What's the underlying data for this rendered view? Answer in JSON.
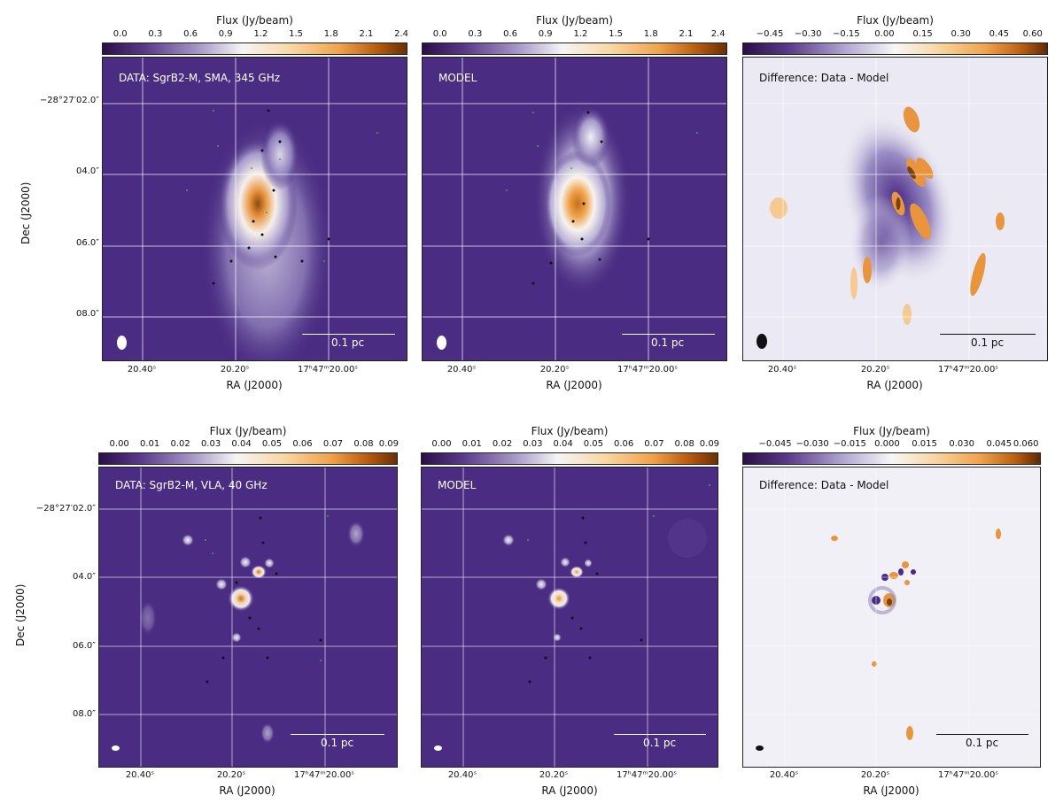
{
  "figure": {
    "colorbar_title": "Flux (Jy/beam)",
    "xaxis_label": "RA (J2000)",
    "yaxis_label": "Dec (J2000)",
    "scale_bar_label": "0.1 pc"
  },
  "rows": [
    {
      "name": "sma",
      "ytick_labels": [
        "−28°27′02.0″",
        "04.0″",
        "06.0″",
        "08.0″"
      ],
      "xtick_labels": [
        "20.40ˢ",
        "20.20ˢ",
        "17ʰ47ᵐ20.00ˢ"
      ],
      "panels": [
        {
          "name": "data",
          "label": "DATA: SgrB2-M, SMA, 345 GHz",
          "colorbar_ticks": [
            "0.0",
            "0.3",
            "0.6",
            "0.9",
            "1.2",
            "1.5",
            "1.8",
            "2.1",
            "2.4"
          ]
        },
        {
          "name": "model",
          "label": "MODEL",
          "colorbar_ticks": [
            "0.0",
            "0.3",
            "0.6",
            "0.9",
            "1.2",
            "1.5",
            "1.8",
            "2.1",
            "2.4"
          ]
        },
        {
          "name": "difference",
          "label": "Difference: Data - Model",
          "colorbar_ticks": [
            "−0.45",
            "−0.30",
            "−0.15",
            "0.00",
            "0.15",
            "0.30",
            "0.45",
            "0.60"
          ]
        }
      ]
    },
    {
      "name": "vla",
      "ytick_labels": [
        "−28°27′02.0″",
        "04.0″",
        "06.0″",
        "08.0″"
      ],
      "xtick_labels": [
        "20.40ˢ",
        "20.20ˢ",
        "17ʰ47ᵐ20.00ˢ"
      ],
      "panels": [
        {
          "name": "data",
          "label": "DATA: SgrB2-M, VLA, 40 GHz",
          "colorbar_ticks": [
            "0.00",
            "0.01",
            "0.02",
            "0.03",
            "0.04",
            "0.05",
            "0.06",
            "0.07",
            "0.08",
            "0.09"
          ]
        },
        {
          "name": "model",
          "label": "MODEL",
          "colorbar_ticks": [
            "0.00",
            "0.01",
            "0.02",
            "0.03",
            "0.04",
            "0.05",
            "0.06",
            "0.07",
            "0.08",
            "0.09"
          ]
        },
        {
          "name": "difference",
          "label": "Difference: Data - Model",
          "colorbar_ticks": [
            "−0.045",
            "−0.030",
            "−0.015",
            "0.000",
            "0.015",
            "0.030",
            "0.045",
            "0.060"
          ]
        }
      ]
    }
  ]
}
